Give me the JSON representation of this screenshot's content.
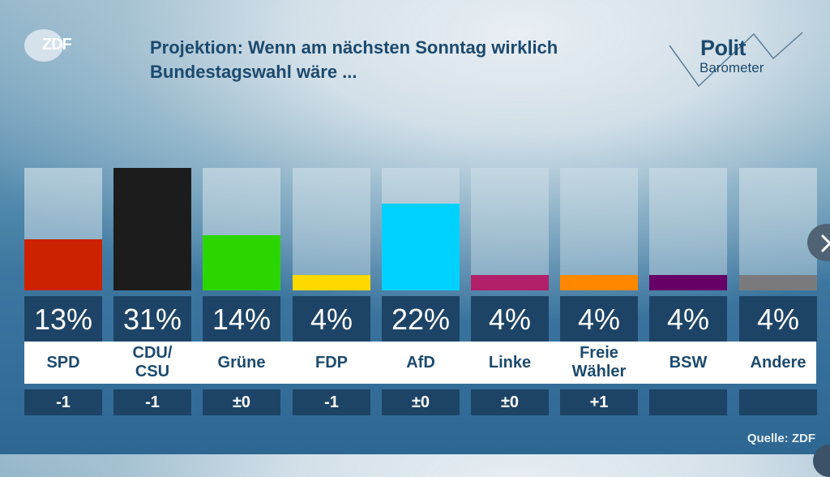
{
  "header": {
    "logo": "ZDF",
    "title_line1": "Projektion: Wenn am nächsten Sonntag wirklich",
    "title_line2": "Bundestagswahl wäre ...",
    "brand_line1": "Polit",
    "brand_line2": "Barometer"
  },
  "footer": {
    "source": "Quelle: ZDF"
  },
  "controls": {
    "next_icon": "chevron-right-icon"
  },
  "chart_data": {
    "type": "bar",
    "title": "Projektion: Wenn am nächsten Sonntag wirklich Bundestagswahl wäre ...",
    "xlabel": "",
    "ylabel": "Prozent",
    "ylim": [
      0,
      31
    ],
    "grid": false,
    "categories": [
      "SPD",
      "CDU/\nCSU",
      "Grüne",
      "FDP",
      "AfD",
      "Linke",
      "Freie\nWähler",
      "BSW",
      "Andere"
    ],
    "values": [
      13,
      31,
      14,
      4,
      22,
      4,
      4,
      4,
      4
    ],
    "value_labels": [
      "13%",
      "31%",
      "14%",
      "4%",
      "22%",
      "4%",
      "4%",
      "4%",
      "4%"
    ],
    "changes": [
      "-1",
      "-1",
      "±0",
      "-1",
      "±0",
      "±0",
      "+1",
      "",
      ""
    ],
    "colors": [
      "#cc2200",
      "#1c1c1c",
      "#2bd600",
      "#ffd800",
      "#00d2ff",
      "#b3206a",
      "#ff8800",
      "#660066",
      "#7a7a7e"
    ],
    "display_floor": 4
  }
}
